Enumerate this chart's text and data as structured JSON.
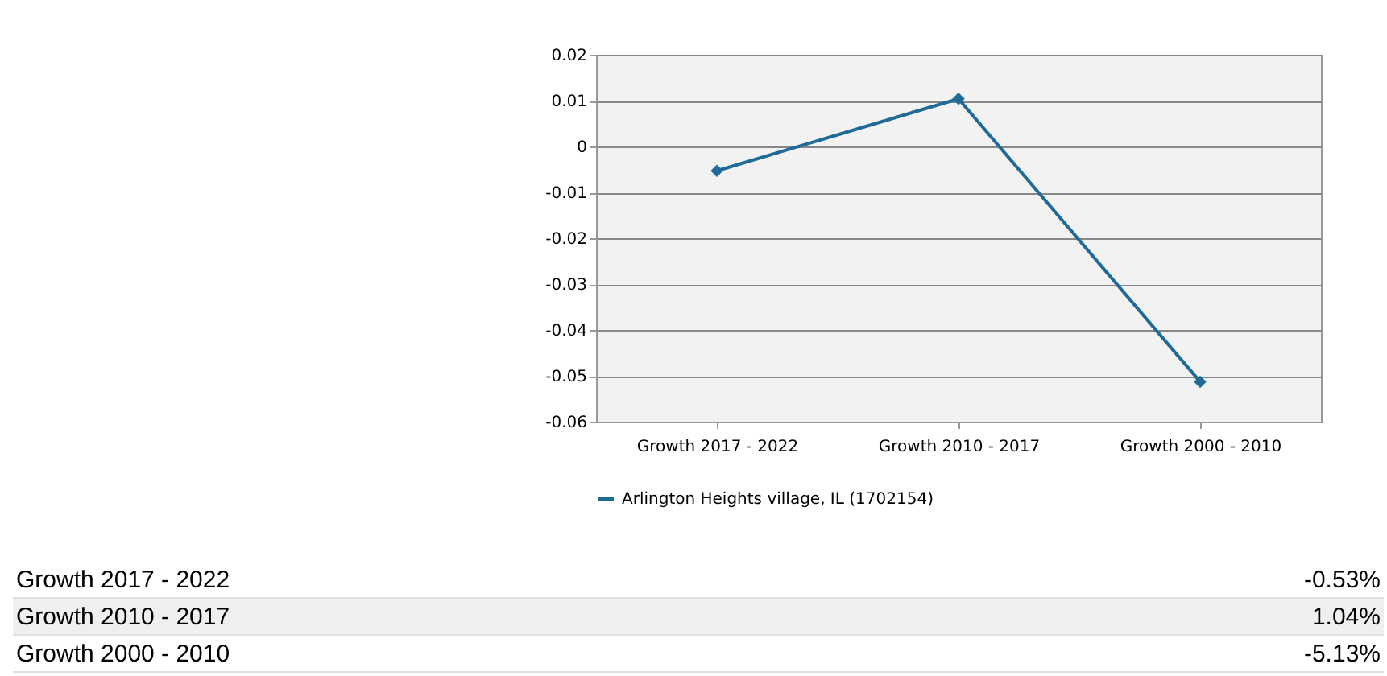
{
  "chart_data": [
    {
      "type": "line",
      "categories": [
        "Growth 2017 - 2022",
        "Growth 2010 - 2017",
        "Growth 2000 - 2010"
      ],
      "series": [
        {
          "name": "Arlington Heights village, IL (1702154)",
          "color": "#1f6a96",
          "values": [
            -0.0053,
            0.0104,
            -0.0513
          ]
        }
      ],
      "ylim": [
        -0.06,
        0.02
      ],
      "yticks": [
        -0.06,
        -0.05,
        -0.04,
        -0.03,
        -0.02,
        -0.01,
        0,
        0.01,
        0.02
      ],
      "grid": "y",
      "legend": "bottom",
      "marker": "diamond"
    },
    {
      "type": "other",
      "annotations": [
        "Growth 2017 - 2022",
        "-0.53%",
        "Growth 2010 - 2017",
        "1.04%",
        "Growth 2000 - 2010",
        "-5.13%"
      ]
    }
  ]
}
